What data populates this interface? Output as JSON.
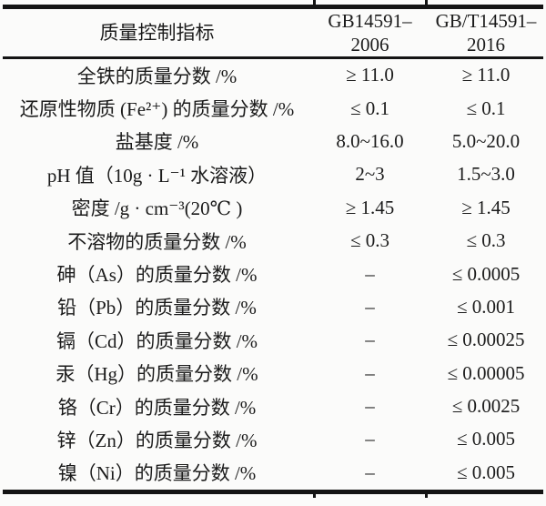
{
  "page": {
    "background_color": "#fbfbfa",
    "text_color": "#1b1b1b",
    "rule_color": "#141414"
  },
  "table": {
    "header": {
      "col_indicator": "质量控制指标",
      "col_gb2006_line1": "GB14591–",
      "col_gb2006_line2": "2006",
      "col_gb2016_line1": "GB/T14591–",
      "col_gb2016_line2": "2016"
    },
    "rows": [
      {
        "label": "全铁的质量分数 /%",
        "gb2006": "≥ 11.0",
        "gb2016": "≥ 11.0"
      },
      {
        "label": "还原性物质 (Fe²⁺) 的质量分数 /%",
        "gb2006": "≤ 0.1",
        "gb2016": "≤ 0.1"
      },
      {
        "label": "盐基度 /%",
        "gb2006": "8.0~16.0",
        "gb2016": "5.0~20.0"
      },
      {
        "label": "pH 值（10g · L⁻¹ 水溶液）",
        "gb2006": "2~3",
        "gb2016": "1.5~3.0"
      },
      {
        "label": "密度 /g · cm⁻³(20℃ )",
        "gb2006": "≥ 1.45",
        "gb2016": "≥ 1.45"
      },
      {
        "label": "不溶物的质量分数 /%",
        "gb2006": "≤ 0.3",
        "gb2016": "≤ 0.3"
      },
      {
        "label": "砷（As）的质量分数 /%",
        "gb2006": "–",
        "gb2016": "≤ 0.0005"
      },
      {
        "label": "铅（Pb）的质量分数 /%",
        "gb2006": "–",
        "gb2016": "≤ 0.001"
      },
      {
        "label": "镉（Cd）的质量分数 /%",
        "gb2006": "–",
        "gb2016": "≤ 0.00025"
      },
      {
        "label": "汞（Hg）的质量分数 /%",
        "gb2006": "–",
        "gb2016": "≤ 0.00005"
      },
      {
        "label": "铬（Cr）的质量分数 /%",
        "gb2006": "–",
        "gb2016": "≤ 0.0025"
      },
      {
        "label": "锌（Zn）的质量分数 /%",
        "gb2006": "–",
        "gb2016": "≤ 0.005"
      },
      {
        "label": "镍（Ni）的质量分数 /%",
        "gb2006": "–",
        "gb2016": "≤ 0.005"
      }
    ]
  }
}
